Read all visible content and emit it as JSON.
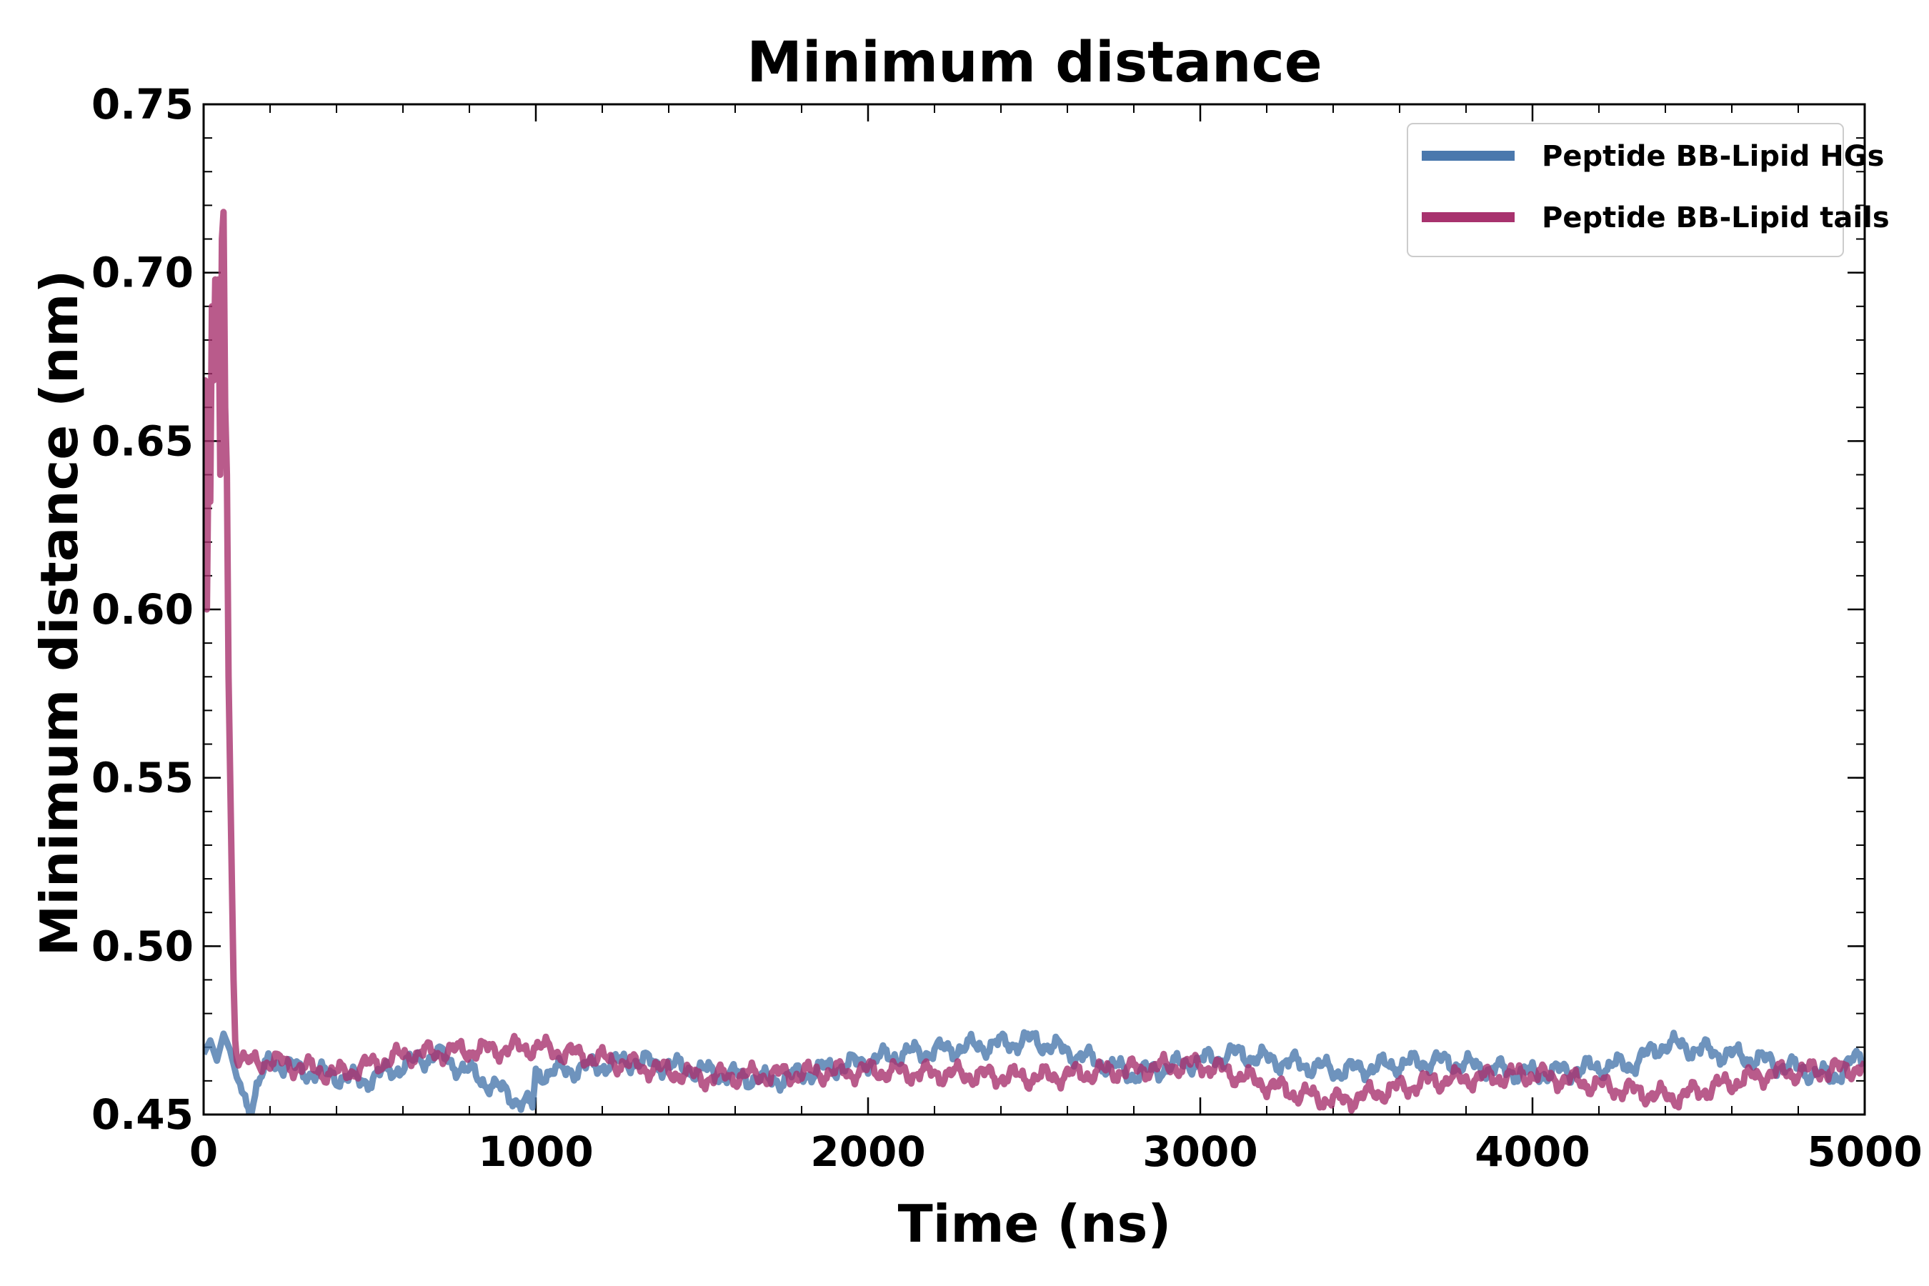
{
  "chart_data": {
    "type": "line",
    "title": "Minimum distance",
    "xlabel": "Time (ns)",
    "ylabel": "Minimum distance (nm)",
    "xlim": [
      0,
      5000
    ],
    "ylim": [
      0.45,
      0.75
    ],
    "xticks": [
      0,
      1000,
      2000,
      3000,
      4000,
      5000
    ],
    "xtick_labels": [
      "0",
      "1000",
      "2000",
      "3000",
      "4000",
      "5000"
    ],
    "yticks": [
      0.45,
      0.5,
      0.55,
      0.6,
      0.65,
      0.7,
      0.75
    ],
    "ytick_labels": [
      "0.45",
      "0.50",
      "0.55",
      "0.60",
      "0.65",
      "0.70",
      "0.75"
    ],
    "grid": false,
    "legend_position": "top-right",
    "series": [
      {
        "name": "Peptide BB-Lipid HGs",
        "color": "#4a78ad",
        "base": 0.465,
        "amplitude": 0.004,
        "x": [
          0,
          20,
          40,
          60,
          80,
          100,
          120,
          140,
          160,
          200,
          300,
          480,
          700,
          990,
          1000,
          1300,
          1700,
          2100,
          2500,
          2800,
          3100,
          3420,
          3700,
          4000,
          4300,
          4400,
          4700,
          4900,
          5000
        ],
        "y": [
          0.468,
          0.472,
          0.466,
          0.474,
          0.469,
          0.461,
          0.456,
          0.452,
          0.458,
          0.466,
          0.463,
          0.46,
          0.468,
          0.452,
          0.462,
          0.466,
          0.46,
          0.468,
          0.472,
          0.462,
          0.468,
          0.463,
          0.466,
          0.462,
          0.465,
          0.471,
          0.466,
          0.461,
          0.468
        ]
      },
      {
        "name": "Peptide BB-Lipid tails",
        "color": "#a8326e",
        "base": 0.464,
        "amplitude": 0.004,
        "x": [
          0,
          5,
          10,
          15,
          20,
          25,
          30,
          35,
          40,
          45,
          50,
          55,
          60,
          65,
          70,
          75,
          80,
          85,
          90,
          95,
          100,
          110,
          130,
          200,
          400,
          620,
          1000,
          1500,
          2000,
          2500,
          3000,
          3300,
          3420,
          3700,
          4000,
          4420,
          4700,
          5000
        ],
        "y": [
          0.61,
          0.668,
          0.6,
          0.65,
          0.632,
          0.69,
          0.668,
          0.698,
          0.685,
          0.698,
          0.64,
          0.71,
          0.718,
          0.66,
          0.64,
          0.58,
          0.55,
          0.52,
          0.49,
          0.472,
          0.466,
          0.468,
          0.465,
          0.466,
          0.462,
          0.468,
          0.47,
          0.461,
          0.463,
          0.461,
          0.465,
          0.456,
          0.454,
          0.46,
          0.462,
          0.455,
          0.462,
          0.464
        ]
      }
    ]
  }
}
